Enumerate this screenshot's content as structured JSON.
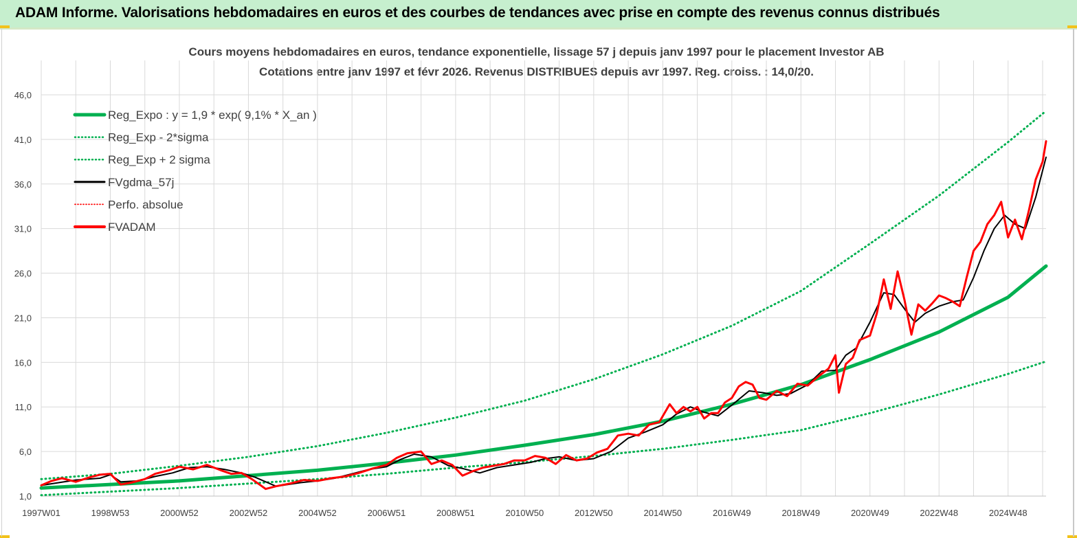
{
  "header": {
    "title": "ADAM Informe. Valorisations hebdomadaires en euros et des courbes de tendances avec prise en compte des revenus connus distribués"
  },
  "colors": {
    "header_bg": "#c6efce",
    "reg": "#00b050",
    "fvgdma": "#000000",
    "fvadam": "#ff0000",
    "grid": "#d9d9d9",
    "text": "#404040"
  },
  "chart_data": {
    "type": "line",
    "title": "Cours moyens hebdomadaires en euros, tendance exponentielle, lissage 57 j depuis janv 1997 pour le placement Investor AB",
    "subtitle": "Cotations entre janv 1997 et févr 2026. Revenus DISTRIBUES depuis avr 1997. Reg. croiss. : 14,0/20.",
    "xlabel": "",
    "ylabel": "",
    "x_range": [
      1997.0,
      2026.1
    ],
    "ylim": [
      1.0,
      46.0
    ],
    "y_ticks": [
      "1,0",
      "6,0",
      "11,0",
      "16,0",
      "21,0",
      "26,0",
      "31,0",
      "36,0",
      "41,0",
      "46,0"
    ],
    "x_ticks": [
      {
        "label": "1997W01",
        "x": 1997.0
      },
      {
        "label": "1998W53",
        "x": 1999.0
      },
      {
        "label": "2000W52",
        "x": 2001.0
      },
      {
        "label": "2002W52",
        "x": 2003.0
      },
      {
        "label": "2004W52",
        "x": 2005.0
      },
      {
        "label": "2006W51",
        "x": 2007.0
      },
      {
        "label": "2008W51",
        "x": 2009.0
      },
      {
        "label": "2010W50",
        "x": 2011.0
      },
      {
        "label": "2012W50",
        "x": 2013.0
      },
      {
        "label": "2014W50",
        "x": 2015.0
      },
      {
        "label": "2016W49",
        "x": 2017.0
      },
      {
        "label": "2018W49",
        "x": 2019.0
      },
      {
        "label": "2020W49",
        "x": 2021.0
      },
      {
        "label": "2022W48",
        "x": 2023.0
      },
      {
        "label": "2024W48",
        "x": 2025.0
      }
    ],
    "legend": [
      {
        "name": "Reg_Expo : y = 1,9 * exp( 9,1% *  X_an )",
        "color": "#00b050",
        "style": "solid-thick"
      },
      {
        "name": "Reg_Exp - 2*sigma",
        "color": "#00b050",
        "style": "dotted"
      },
      {
        "name": "Reg_Exp + 2 sigma",
        "color": "#00b050",
        "style": "dotted"
      },
      {
        "name": "FVgdma_57j",
        "color": "#000000",
        "style": "solid"
      },
      {
        "name": "Perfo. absolue",
        "color": "#ff0000",
        "style": "dotted"
      },
      {
        "name": "FVADAM",
        "color": "#ff0000",
        "style": "solid-thick"
      }
    ],
    "series": [
      {
        "name": "Reg_Expo",
        "color": "#00b050",
        "x": [
          1997,
          1999,
          2001,
          2003,
          2005,
          2007,
          2009,
          2011,
          2013,
          2015,
          2017,
          2019,
          2021,
          2023,
          2025,
          2026.1
        ],
        "y": [
          1.9,
          2.3,
          2.7,
          3.3,
          3.9,
          4.7,
          5.6,
          6.7,
          7.9,
          9.4,
          11.3,
          13.5,
          16.3,
          19.4,
          23.3,
          26.8
        ]
      },
      {
        "name": "Reg_Exp - 2*sigma",
        "color": "#00b050",
        "x": [
          1997,
          1999,
          2001,
          2003,
          2005,
          2007,
          2009,
          2011,
          2013,
          2015,
          2017,
          2019,
          2021,
          2023,
          2025,
          2026.1
        ],
        "y": [
          1.1,
          1.5,
          1.9,
          2.4,
          2.9,
          3.5,
          4.2,
          4.8,
          5.5,
          6.3,
          7.3,
          8.4,
          10.3,
          12.4,
          14.7,
          16.1
        ]
      },
      {
        "name": "Reg_Exp + 2 sigma",
        "color": "#00b050",
        "x": [
          1997,
          1999,
          2001,
          2003,
          2005,
          2007,
          2009,
          2011,
          2013,
          2015,
          2017,
          2019,
          2021,
          2023,
          2025,
          2026.1
        ],
        "y": [
          2.9,
          3.5,
          4.4,
          5.4,
          6.6,
          8.1,
          9.8,
          11.7,
          14.1,
          16.9,
          20.1,
          24.0,
          29.3,
          34.7,
          40.7,
          44.2
        ]
      },
      {
        "name": "FVgdma_57j",
        "color": "#000000",
        "x": [
          1997.0,
          1997.5,
          1998.0,
          1998.7,
          1999.0,
          1999.3,
          1999.8,
          2000.3,
          2000.8,
          2001.3,
          2001.8,
          2002.3,
          2002.8,
          2003.2,
          2003.8,
          2004.5,
          2005.0,
          2005.5,
          2006.0,
          2006.5,
          2007.0,
          2007.4,
          2007.8,
          2008.3,
          2008.8,
          2009.2,
          2009.7,
          2010.2,
          2010.7,
          2011.2,
          2011.6,
          2012.0,
          2012.5,
          2013.0,
          2013.5,
          2014.0,
          2014.5,
          2015.0,
          2015.4,
          2015.8,
          2016.2,
          2016.6,
          2017.0,
          2017.5,
          2017.9,
          2018.3,
          2018.7,
          2019.2,
          2019.6,
          2020.0,
          2020.3,
          2020.6,
          2021.0,
          2021.4,
          2021.7,
          2022.0,
          2022.3,
          2022.6,
          2023.0,
          2023.4,
          2023.7,
          2024.0,
          2024.3,
          2024.6,
          2024.9,
          2025.2,
          2025.5,
          2025.8,
          2026.1
        ],
        "y": [
          2.2,
          2.5,
          2.8,
          3.0,
          3.4,
          2.6,
          2.7,
          3.2,
          3.6,
          4.2,
          4.3,
          4.0,
          3.6,
          3.1,
          2.1,
          2.5,
          2.7,
          3.0,
          3.5,
          4.0,
          4.3,
          5.1,
          5.7,
          5.4,
          4.4,
          4.1,
          3.6,
          4.2,
          4.5,
          4.8,
          5.2,
          5.4,
          5.0,
          5.2,
          6.0,
          7.5,
          8.2,
          9.0,
          10.2,
          11.0,
          10.4,
          10.0,
          11.2,
          12.8,
          12.6,
          12.3,
          12.5,
          13.5,
          15.0,
          15.1,
          16.8,
          17.6,
          20.5,
          23.8,
          23.6,
          22.0,
          20.5,
          21.5,
          22.3,
          22.8,
          23.0,
          25.5,
          28.5,
          31.0,
          32.5,
          31.5,
          31.0,
          34.5,
          39.0
        ]
      },
      {
        "name": "FVADAM",
        "color": "#ff0000",
        "x": [
          1997.0,
          1997.3,
          1997.6,
          1998.0,
          1998.4,
          1998.7,
          1999.0,
          1999.3,
          1999.6,
          2000.0,
          2000.3,
          2000.7,
          2001.0,
          2001.4,
          2001.8,
          2002.2,
          2002.5,
          2002.8,
          2003.1,
          2003.5,
          2003.8,
          2004.2,
          2004.6,
          2005.0,
          2005.4,
          2005.8,
          2006.2,
          2006.6,
          2007.0,
          2007.3,
          2007.6,
          2008.0,
          2008.3,
          2008.6,
          2008.9,
          2009.2,
          2009.5,
          2009.8,
          2010.1,
          2010.4,
          2010.7,
          2011.0,
          2011.3,
          2011.6,
          2011.9,
          2012.2,
          2012.5,
          2012.8,
          2013.1,
          2013.4,
          2013.7,
          2014.0,
          2014.3,
          2014.6,
          2014.9,
          2015.2,
          2015.4,
          2015.6,
          2015.8,
          2016.0,
          2016.2,
          2016.4,
          2016.6,
          2016.8,
          2017.0,
          2017.2,
          2017.4,
          2017.6,
          2017.8,
          2018.0,
          2018.3,
          2018.6,
          2018.9,
          2019.2,
          2019.5,
          2019.8,
          2020.0,
          2020.1,
          2020.3,
          2020.5,
          2020.7,
          2021.0,
          2021.2,
          2021.4,
          2021.6,
          2021.8,
          2022.0,
          2022.2,
          2022.4,
          2022.6,
          2022.8,
          2023.0,
          2023.2,
          2023.4,
          2023.6,
          2023.8,
          2024.0,
          2024.2,
          2024.4,
          2024.6,
          2024.8,
          2025.0,
          2025.2,
          2025.4,
          2025.6,
          2025.8,
          2026.0,
          2026.1
        ],
        "y": [
          2.2,
          2.7,
          3.0,
          2.6,
          3.1,
          3.4,
          3.5,
          2.3,
          2.5,
          2.9,
          3.5,
          3.9,
          4.3,
          4.0,
          4.5,
          3.9,
          3.5,
          3.6,
          2.9,
          1.8,
          2.1,
          2.4,
          2.8,
          2.7,
          3.0,
          3.2,
          3.6,
          4.1,
          4.5,
          5.3,
          5.8,
          6.0,
          4.6,
          5.0,
          4.5,
          3.3,
          3.8,
          4.2,
          4.4,
          4.6,
          5.0,
          5.0,
          5.5,
          5.3,
          4.6,
          5.6,
          5.0,
          5.2,
          5.9,
          6.3,
          7.8,
          8.0,
          7.8,
          9.0,
          9.3,
          11.3,
          10.3,
          11.0,
          10.5,
          11.0,
          9.7,
          10.3,
          10.3,
          11.5,
          12.0,
          13.3,
          13.8,
          13.5,
          12.0,
          11.8,
          12.8,
          12.2,
          13.6,
          13.4,
          14.4,
          15.3,
          16.8,
          12.6,
          15.8,
          16.5,
          18.5,
          19.0,
          21.5,
          25.3,
          22.0,
          26.2,
          23.0,
          19.1,
          22.5,
          21.8,
          22.6,
          23.5,
          23.2,
          22.8,
          22.3,
          25.5,
          28.5,
          29.5,
          31.5,
          32.5,
          34.0,
          30.0,
          32.0,
          29.8,
          33.0,
          36.5,
          38.5,
          40.8
        ]
      }
    ]
  }
}
